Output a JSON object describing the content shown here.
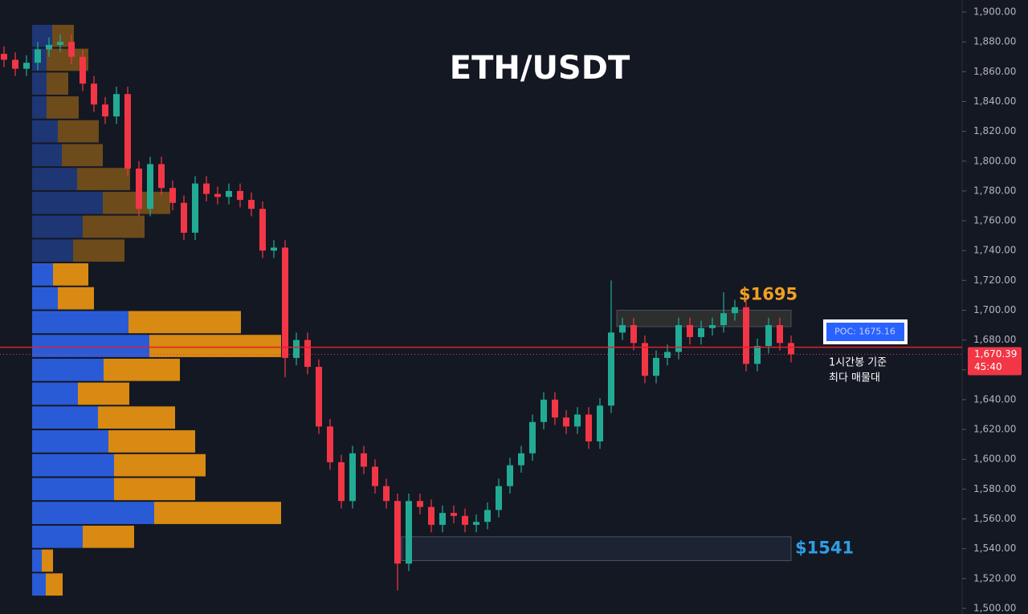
{
  "chart_data": {
    "type": "candlestick",
    "title": "ETH/USDT",
    "categories": [
      null,
      null,
      null,
      null,
      null,
      null,
      null,
      null,
      null,
      null,
      null,
      null,
      null,
      null,
      null,
      null,
      null,
      null,
      null,
      null,
      null,
      null,
      null,
      null,
      null,
      null,
      null,
      null,
      null,
      null,
      null,
      null,
      null,
      null,
      null,
      null,
      null,
      null,
      null,
      null,
      null,
      null,
      null,
      null,
      null,
      null,
      null,
      null,
      null,
      null,
      null,
      null,
      null,
      null,
      null,
      null,
      null,
      null,
      null,
      null,
      null,
      null,
      null,
      null,
      null,
      null,
      null,
      null,
      null,
      null,
      null
    ],
    "open": [
      1872,
      1868,
      1862,
      1866,
      1875,
      1878,
      1880,
      1870,
      1852,
      1838,
      1830,
      1845,
      1795,
      1768,
      1798,
      1782,
      1772,
      1752,
      1785,
      1778,
      1776,
      1780,
      1774,
      1768,
      1740,
      1742,
      1668,
      1680,
      1662,
      1622,
      1598,
      1572,
      1604,
      1595,
      1582,
      1572,
      1530,
      1572,
      1568,
      1556,
      1564,
      1562,
      1556,
      1558,
      1566,
      1582,
      1596,
      1604,
      1625,
      1640,
      1628,
      1622,
      1630,
      1612,
      1636,
      1685,
      1690,
      1678,
      1656,
      1668,
      1672,
      1690,
      1682,
      1688,
      1690,
      1698,
      1702,
      1664,
      1676,
      1690,
      1678
    ],
    "high": [
      1877,
      1873,
      1871,
      1880,
      1883,
      1885,
      1885,
      1875,
      1857,
      1843,
      1850,
      1850,
      1800,
      1803,
      1803,
      1787,
      1777,
      1790,
      1790,
      1783,
      1785,
      1785,
      1779,
      1773,
      1747,
      1747,
      1685,
      1685,
      1667,
      1627,
      1603,
      1609,
      1609,
      1600,
      1587,
      1577,
      1577,
      1577,
      1573,
      1569,
      1569,
      1567,
      1563,
      1571,
      1587,
      1601,
      1609,
      1630,
      1645,
      1645,
      1633,
      1635,
      1635,
      1641,
      1720,
      1695,
      1695,
      1683,
      1673,
      1677,
      1695,
      1695,
      1693,
      1695,
      1712,
      1707,
      1707,
      1681,
      1695,
      1695,
      1683
    ],
    "low": [
      1863,
      1857,
      1857,
      1861,
      1870,
      1873,
      1865,
      1847,
      1833,
      1825,
      1825,
      1790,
      1763,
      1763,
      1777,
      1767,
      1747,
      1747,
      1773,
      1771,
      1771,
      1769,
      1763,
      1735,
      1735,
      1655,
      1663,
      1657,
      1617,
      1593,
      1567,
      1567,
      1590,
      1577,
      1567,
      1512,
      1525,
      1563,
      1551,
      1551,
      1557,
      1551,
      1551,
      1553,
      1561,
      1577,
      1591,
      1599,
      1620,
      1623,
      1617,
      1617,
      1607,
      1607,
      1631,
      1680,
      1673,
      1651,
      1651,
      1663,
      1667,
      1677,
      1677,
      1683,
      1685,
      1693,
      1659,
      1659,
      1671,
      1673,
      1665
    ],
    "close": [
      1868,
      1862,
      1866,
      1875,
      1878,
      1880,
      1870,
      1852,
      1838,
      1830,
      1845,
      1795,
      1768,
      1798,
      1782,
      1772,
      1752,
      1785,
      1778,
      1776,
      1780,
      1774,
      1768,
      1740,
      1742,
      1668,
      1680,
      1662,
      1622,
      1598,
      1572,
      1604,
      1595,
      1582,
      1572,
      1530,
      1572,
      1568,
      1556,
      1564,
      1562,
      1556,
      1558,
      1566,
      1582,
      1596,
      1604,
      1625,
      1640,
      1628,
      1622,
      1630,
      1612,
      1636,
      1685,
      1690,
      1678,
      1656,
      1668,
      1672,
      1690,
      1682,
      1688,
      1690,
      1698,
      1702,
      1664,
      1676,
      1690,
      1678,
      1670.39
    ],
    "up_color": "#22ab94",
    "down_color": "#f23645",
    "ylim": [
      1496.2,
      1908.1
    ],
    "yticks": [
      {
        "value": 1500,
        "label": "1,500.00"
      },
      {
        "value": 1520,
        "label": "1,520.00"
      },
      {
        "value": 1540,
        "label": "1,540.00"
      },
      {
        "value": 1560,
        "label": "1,560.00"
      },
      {
        "value": 1580,
        "label": "1,580.00"
      },
      {
        "value": 1600,
        "label": "1,600.00"
      },
      {
        "value": 1620,
        "label": "1,620.00"
      },
      {
        "value": 1640,
        "label": "1,640.00"
      },
      {
        "value": 1660,
        "label": "1,660.00"
      },
      {
        "value": 1680,
        "label": "1,680.00"
      },
      {
        "value": 1700,
        "label": "1,700.00"
      },
      {
        "value": 1720,
        "label": "1,720.00"
      },
      {
        "value": 1740,
        "label": "1,740.00"
      },
      {
        "value": 1760,
        "label": "1,760.00"
      },
      {
        "value": 1780,
        "label": "1,780.00"
      },
      {
        "value": 1800,
        "label": "1,800.00"
      },
      {
        "value": 1820,
        "label": "1,820.00"
      },
      {
        "value": 1840,
        "label": "1,840.00"
      },
      {
        "value": 1860,
        "label": "1,860.00"
      },
      {
        "value": 1880,
        "label": "1,880.00"
      },
      {
        "value": 1900,
        "label": "1,900.00"
      }
    ],
    "volume_profile": {
      "bins": [
        1892,
        1876,
        1860,
        1844,
        1828,
        1812,
        1796,
        1780,
        1764,
        1748,
        1732,
        1716,
        1700,
        1684,
        1668,
        1652,
        1636,
        1620,
        1604,
        1588,
        1572,
        1556,
        1540,
        1524,
        1508
      ],
      "buy": [
        25,
        18,
        18,
        18,
        32,
        37,
        56,
        88,
        63,
        51,
        26,
        32,
        120,
        146,
        89,
        57,
        82,
        95,
        102,
        102,
        152,
        63,
        12,
        17
      ],
      "sell": [
        27,
        52,
        27,
        40,
        51,
        51,
        66,
        84,
        77,
        64,
        44,
        45,
        140,
        164,
        95,
        64,
        96,
        108,
        114,
        101,
        158,
        64,
        14,
        21
      ],
      "buy_color": "#2a5bd7",
      "sell_color": "#d98a12"
    },
    "poc": {
      "value": 1675.16,
      "label": "POC: 1675.16",
      "color": "#e0202a"
    },
    "last_price": {
      "value": 1670.39,
      "label": "1,670.39"
    },
    "countdown": "45:40",
    "note": [
      "1시간봉 기준",
      "최다 매물대"
    ],
    "zones": [
      {
        "text": "$1695",
        "from": 1689,
        "to": 1700,
        "color": "#f0a020"
      },
      {
        "text": "$1541",
        "from": 1532,
        "to": 1548,
        "color": "#2e9fe6"
      }
    ]
  }
}
